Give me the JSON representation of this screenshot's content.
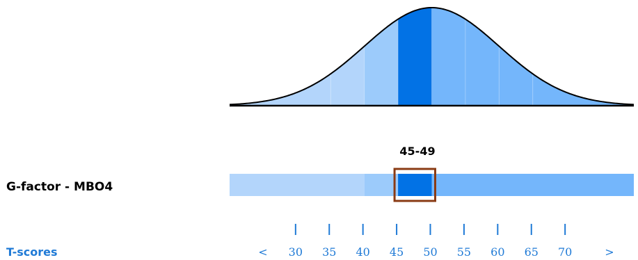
{
  "colors": {
    "band_light": "#b3d5fb",
    "band_mid": "#9ccbfb",
    "band_dark": "#74b6fb",
    "band_highlight": "#0272e5",
    "score_box_border": "#8a3b14",
    "tscore_text": "#1f7ad6",
    "axis": "#000000"
  },
  "chart_data": {
    "type": "area",
    "distribution": "normal",
    "mean": 50,
    "sd": 10,
    "xlim": [
      20,
      80
    ],
    "bands": [
      {
        "from": 20,
        "to": 35,
        "shade": "band_light"
      },
      {
        "from": 35,
        "to": 40,
        "shade": "band_light"
      },
      {
        "from": 40,
        "to": 45,
        "shade": "band_mid"
      },
      {
        "from": 45,
        "to": 50,
        "shade": "band_highlight"
      },
      {
        "from": 50,
        "to": 55,
        "shade": "band_dark"
      },
      {
        "from": 55,
        "to": 60,
        "shade": "band_dark"
      },
      {
        "from": 60,
        "to": 65,
        "shade": "band_dark"
      },
      {
        "from": 65,
        "to": 80,
        "shade": "band_dark"
      }
    ],
    "row": {
      "label": "G-factor - MBO4",
      "score_range": "45-49",
      "score_from": 45,
      "score_to": 50,
      "bar_segments": [
        {
          "from": 20,
          "to": 40,
          "shade": "band_light"
        },
        {
          "from": 40,
          "to": 45,
          "shade": "band_mid"
        },
        {
          "from": 45,
          "to": 50,
          "shade": "band_highlight"
        },
        {
          "from": 50,
          "to": 80,
          "shade": "band_dark"
        }
      ]
    },
    "xaxis": {
      "label": "T-scores",
      "ticks": [
        30,
        35,
        40,
        45,
        50,
        55,
        60,
        65,
        70
      ],
      "tick_labels": [
        "30",
        "35",
        "40",
        "45",
        "50",
        "55",
        "60",
        "65",
        "70"
      ],
      "lower_label": "<",
      "upper_label": ">"
    }
  }
}
